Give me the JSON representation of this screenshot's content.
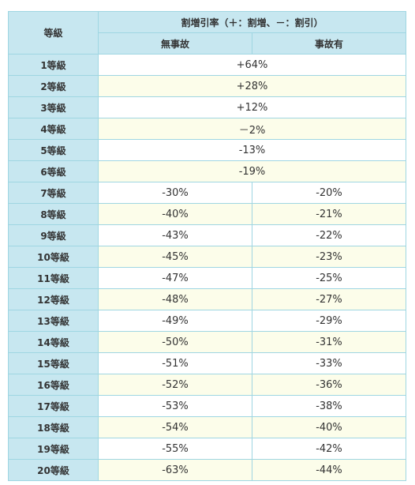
{
  "header": {
    "level_label": "等級",
    "rate_label": "割増引率（＋：割増、－：割引）",
    "no_accident_label": "無事故",
    "accident_label": "事故有"
  },
  "rows": [
    {
      "level": "1等級",
      "shared": "+64%"
    },
    {
      "level": "2等級",
      "shared": "+28%"
    },
    {
      "level": "3等級",
      "shared": "+12%"
    },
    {
      "level": "4等級",
      "shared": "－2%"
    },
    {
      "level": "5等級",
      "shared": "-13%"
    },
    {
      "level": "6等級",
      "shared": "-19%"
    },
    {
      "level": "7等級",
      "no_accident": "-30%",
      "accident": "-20%"
    },
    {
      "level": "8等級",
      "no_accident": "-40%",
      "accident": "-21%"
    },
    {
      "level": "9等級",
      "no_accident": "-43%",
      "accident": "-22%"
    },
    {
      "level": "10等級",
      "no_accident": "-45%",
      "accident": "-23%"
    },
    {
      "level": "11等級",
      "no_accident": "-47%",
      "accident": "-25%"
    },
    {
      "level": "12等級",
      "no_accident": "-48%",
      "accident": "-27%"
    },
    {
      "level": "13等級",
      "no_accident": "-49%",
      "accident": "-29%"
    },
    {
      "level": "14等級",
      "no_accident": "-50%",
      "accident": "-31%"
    },
    {
      "level": "15等級",
      "no_accident": "-51%",
      "accident": "-33%"
    },
    {
      "level": "16等級",
      "no_accident": "-52%",
      "accident": "-36%"
    },
    {
      "level": "17等級",
      "no_accident": "-53%",
      "accident": "-38%"
    },
    {
      "level": "18等級",
      "no_accident": "-54%",
      "accident": "-40%"
    },
    {
      "level": "19等級",
      "no_accident": "-55%",
      "accident": "-42%"
    },
    {
      "level": "20等級",
      "no_accident": "-63%",
      "accident": "-44%"
    }
  ],
  "colors": {
    "header_bg": "#c7e7f0",
    "border": "#9fd6e2",
    "row_odd": "#ffffff",
    "row_even": "#fcfdea"
  }
}
